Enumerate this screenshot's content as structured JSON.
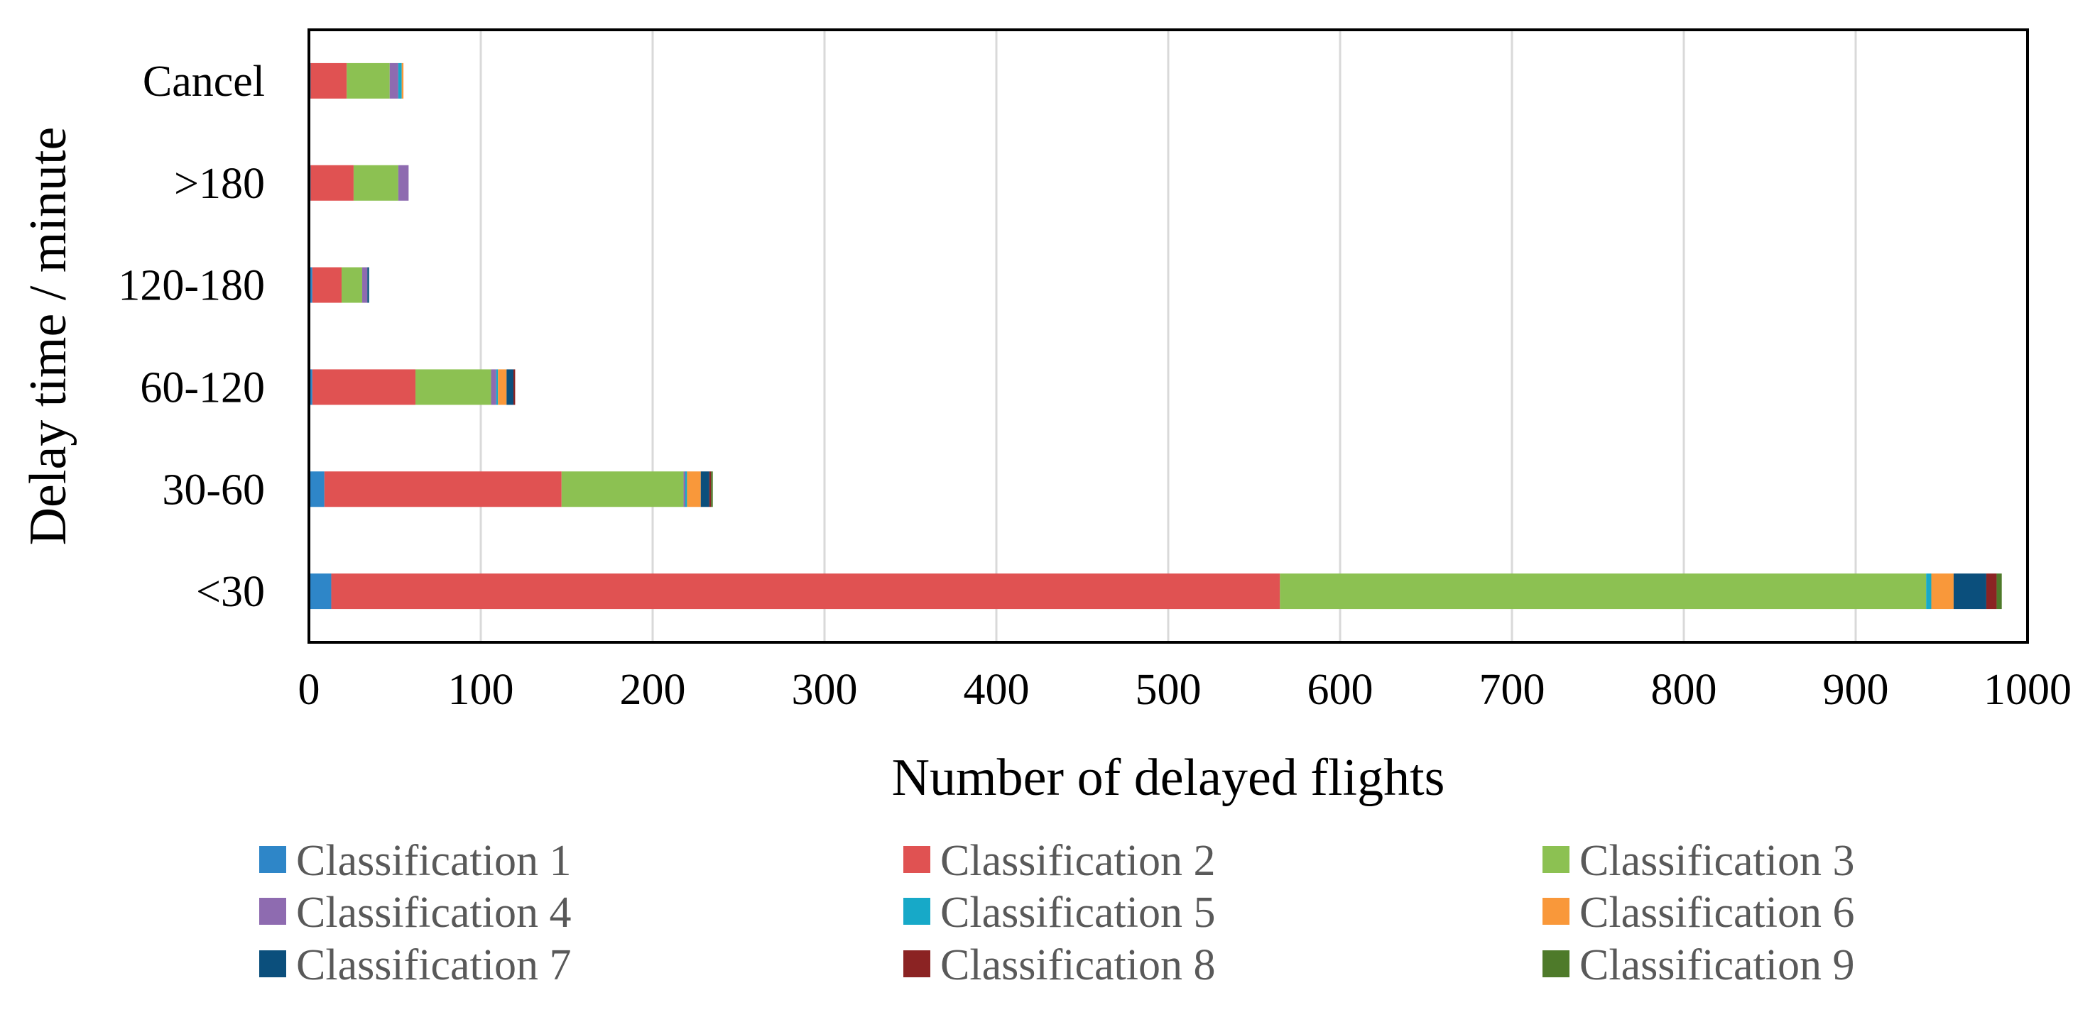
{
  "chart_data": {
    "type": "bar",
    "orientation": "horizontal",
    "stacked": true,
    "categories": [
      "<30",
      "30-60",
      "60-120",
      "120-180",
      ">180",
      "Cancel"
    ],
    "xlabel": "Number of delayed flights",
    "ylabel": "Delay time / minute",
    "xlim": [
      0,
      1000
    ],
    "xticks": [
      0,
      100,
      200,
      300,
      400,
      500,
      600,
      700,
      800,
      900,
      1000
    ],
    "grid": "vertical",
    "legend_position": "bottom",
    "series": [
      {
        "name": "Classification 1",
        "color": "#2E86C8",
        "values": [
          13,
          9,
          2,
          2,
          1,
          1
        ]
      },
      {
        "name": " Classification 2",
        "color": "#E05252",
        "values": [
          552,
          138,
          60,
          17,
          25,
          21
        ]
      },
      {
        "name": "Classification 3",
        "color": "#8CC152",
        "values": [
          376,
          71,
          44,
          12,
          26,
          25
        ]
      },
      {
        "name": "Classification 4",
        "color": "#8E6BB0",
        "values": [
          0,
          1,
          3,
          3,
          6,
          5
        ]
      },
      {
        "name": "Classification 5",
        "color": "#17A9C8",
        "values": [
          3,
          1,
          1,
          0,
          0,
          2
        ]
      },
      {
        "name": "Classification 6",
        "color": "#F9983A",
        "values": [
          13,
          8,
          5,
          0,
          0,
          1
        ]
      },
      {
        "name": "Classification 7",
        "color": "#0B4F7C",
        "values": [
          19,
          5,
          4,
          1,
          0,
          0
        ]
      },
      {
        "name": "Classification 8",
        "color": "#8B2323",
        "values": [
          6,
          1,
          1,
          0,
          0,
          0
        ]
      },
      {
        "name": "Classification 9",
        "color": "#4E7A2A",
        "values": [
          3,
          1,
          0,
          0,
          0,
          0
        ]
      }
    ]
  }
}
